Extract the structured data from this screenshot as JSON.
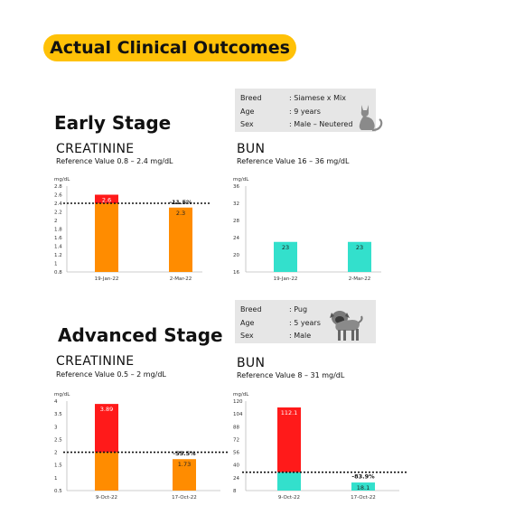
{
  "header": {
    "title": "Actual Clinical Outcomes"
  },
  "early": {
    "stage_title": "Early Stage",
    "pet": {
      "rows": [
        {
          "label": "Breed",
          "value": ": Siamese x Mix"
        },
        {
          "label": "Age",
          "value": ": 9 years"
        },
        {
          "label": "Sex",
          "value": ": Male – Neutered"
        }
      ],
      "icon": "cat-icon"
    },
    "creatinine": {
      "title": "CREATININE",
      "reference": "Reference Value  0.8 – 2.4 mg/dL"
    },
    "bun": {
      "title": "BUN",
      "reference": "Reference Value  16 – 36 mg/dL"
    }
  },
  "advanced": {
    "stage_title": "Advanced Stage",
    "pet": {
      "rows": [
        {
          "label": "Breed",
          "value": ": Pug"
        },
        {
          "label": "Age",
          "value": ": 5 years"
        },
        {
          "label": "Sex",
          "value": ": Male"
        }
      ],
      "icon": "pug-icon"
    },
    "creatinine": {
      "title": "CREATININE",
      "reference": "Reference Value  0.5 – 2 mg/dL"
    },
    "bun": {
      "title": "BUN",
      "reference": "Reference Value  8 – 31 mg/dL"
    }
  },
  "colors": {
    "accent": "#ffc107",
    "orange": "#ff8c00",
    "red": "#ff1a1a",
    "teal": "#33e0cc",
    "card": "#e6e6e6"
  },
  "chart_data": [
    {
      "id": "early-creatinine",
      "type": "bar",
      "unit": "mg/dL",
      "categories": [
        "19-Jan-22",
        "2-Mar-22"
      ],
      "values": [
        2.6,
        2.3
      ],
      "value_labels": [
        "2.6",
        "2.3"
      ],
      "ylim": [
        0.8,
        2.8
      ],
      "yticks": [
        "0.8",
        "1",
        "1.2",
        "1.4",
        "1.6",
        "1.8",
        "2",
        "2.2",
        "2.4",
        "2.6",
        "2.8"
      ],
      "reference_line": 2.4,
      "change_label": "-11.5%",
      "base_color": "#ff8c00",
      "above_color": "#ff1a1a"
    },
    {
      "id": "early-bun",
      "type": "bar",
      "unit": "mg/dL",
      "categories": [
        "19-Jan-22",
        "2-Mar-22"
      ],
      "values": [
        23,
        23
      ],
      "value_labels": [
        "23",
        "23"
      ],
      "ylim": [
        16,
        36
      ],
      "yticks": [
        "16",
        "20",
        "24",
        "28",
        "32",
        "36"
      ],
      "base_color": "#33e0cc"
    },
    {
      "id": "advanced-creatinine",
      "type": "bar",
      "unit": "mg/dL",
      "categories": [
        "9-Oct-22",
        "17-Oct-22"
      ],
      "values": [
        3.89,
        1.73
      ],
      "value_labels": [
        "3.89",
        "1.73"
      ],
      "ylim": [
        0.5,
        4
      ],
      "yticks": [
        "0.5",
        "1",
        "1.5",
        "2",
        "2.5",
        "3",
        "3.5",
        "4"
      ],
      "reference_line": 2,
      "change_label": "-55.5%",
      "base_color": "#ff8c00",
      "above_color": "#ff1a1a"
    },
    {
      "id": "advanced-bun",
      "type": "bar",
      "unit": "mg/dL",
      "categories": [
        "9-Oct-22",
        "17-Oct-22"
      ],
      "values": [
        112.1,
        18.1
      ],
      "value_labels": [
        "112.1",
        "18.1"
      ],
      "ylim": [
        8,
        120
      ],
      "yticks": [
        "8",
        "24",
        "40",
        "56",
        "72",
        "88",
        "104",
        "120"
      ],
      "reference_line": 31,
      "change_label": "-83.9%",
      "base_color": "#33e0cc",
      "above_color": "#ff1a1a"
    }
  ]
}
